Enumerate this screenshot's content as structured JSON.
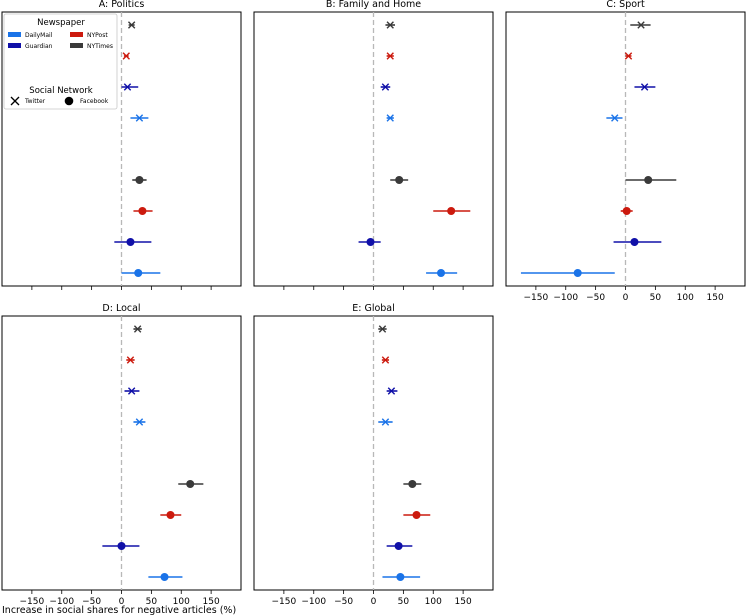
{
  "chart_data": {
    "type": "scatter",
    "figure_xlabel": "Increase in social shares for negative articles (%)",
    "xticks": [
      -150,
      -100,
      -50,
      0,
      50,
      100,
      150
    ],
    "xlim": [
      -200,
      200
    ],
    "colors": {
      "DailyMail": "#1a73e8",
      "Guardian": "#1010a8",
      "NYPost": "#cc1a0e",
      "NYTimes": "#3a3a3a"
    },
    "legend": {
      "newspaper_title": "Newspaper",
      "newspapers": [
        "DailyMail",
        "Guardian",
        "NYPost",
        "NYTimes"
      ],
      "network_title": "Social Network",
      "networks": [
        "Twitter",
        "Facebook"
      ]
    },
    "row_order": [
      "NYTimes-Twitter",
      "NYPost-Twitter",
      "Guardian-Twitter",
      "DailyMail-Twitter",
      "NYTimes-Facebook",
      "NYPost-Facebook",
      "Guardian-Facebook",
      "DailyMail-Facebook"
    ],
    "panels": [
      {
        "title": "A: Politics",
        "points": [
          {
            "newspaper": "NYTimes",
            "network": "Twitter",
            "value": 17,
            "ci": [
              12,
              22
            ]
          },
          {
            "newspaper": "NYPost",
            "network": "Twitter",
            "value": 8,
            "ci": [
              4,
              12
            ]
          },
          {
            "newspaper": "Guardian",
            "network": "Twitter",
            "value": 10,
            "ci": [
              0,
              28
            ]
          },
          {
            "newspaper": "DailyMail",
            "network": "Twitter",
            "value": 30,
            "ci": [
              15,
              45
            ]
          },
          {
            "newspaper": "NYTimes",
            "network": "Facebook",
            "value": 30,
            "ci": [
              18,
              42
            ]
          },
          {
            "newspaper": "NYPost",
            "network": "Facebook",
            "value": 35,
            "ci": [
              20,
              52
            ]
          },
          {
            "newspaper": "Guardian",
            "network": "Facebook",
            "value": 15,
            "ci": [
              -12,
              50
            ]
          },
          {
            "newspaper": "DailyMail",
            "network": "Facebook",
            "value": 28,
            "ci": [
              0,
              65
            ]
          }
        ]
      },
      {
        "title": "B: Family and Home",
        "points": [
          {
            "newspaper": "NYTimes",
            "network": "Twitter",
            "value": 28,
            "ci": [
              20,
              36
            ]
          },
          {
            "newspaper": "NYPost",
            "network": "Twitter",
            "value": 28,
            "ci": [
              22,
              34
            ]
          },
          {
            "newspaper": "Guardian",
            "network": "Twitter",
            "value": 20,
            "ci": [
              12,
              28
            ]
          },
          {
            "newspaper": "DailyMail",
            "network": "Twitter",
            "value": 28,
            "ci": [
              22,
              34
            ]
          },
          {
            "newspaper": "NYTimes",
            "network": "Facebook",
            "value": 43,
            "ci": [
              28,
              58
            ]
          },
          {
            "newspaper": "NYPost",
            "network": "Facebook",
            "value": 130,
            "ci": [
              100,
              162
            ]
          },
          {
            "newspaper": "Guardian",
            "network": "Facebook",
            "value": -5,
            "ci": [
              -25,
              12
            ]
          },
          {
            "newspaper": "DailyMail",
            "network": "Facebook",
            "value": 113,
            "ci": [
              88,
              140
            ]
          }
        ]
      },
      {
        "title": "C: Sport",
        "points": [
          {
            "newspaper": "NYTimes",
            "network": "Twitter",
            "value": 26,
            "ci": [
              8,
              42
            ]
          },
          {
            "newspaper": "NYPost",
            "network": "Twitter",
            "value": 5,
            "ci": [
              0,
              10
            ]
          },
          {
            "newspaper": "Guardian",
            "network": "Twitter",
            "value": 32,
            "ci": [
              15,
              50
            ]
          },
          {
            "newspaper": "DailyMail",
            "network": "Twitter",
            "value": -18,
            "ci": [
              -32,
              -5
            ]
          },
          {
            "newspaper": "NYTimes",
            "network": "Facebook",
            "value": 38,
            "ci": [
              0,
              85
            ]
          },
          {
            "newspaper": "NYPost",
            "network": "Facebook",
            "value": 2,
            "ci": [
              -8,
              12
            ]
          },
          {
            "newspaper": "Guardian",
            "network": "Facebook",
            "value": 15,
            "ci": [
              -20,
              60
            ]
          },
          {
            "newspaper": "DailyMail",
            "network": "Facebook",
            "value": -80,
            "ci": [
              -175,
              -18
            ]
          }
        ]
      },
      {
        "title": "D: Local",
        "points": [
          {
            "newspaper": "NYTimes",
            "network": "Twitter",
            "value": 27,
            "ci": [
              20,
              34
            ]
          },
          {
            "newspaper": "NYPost",
            "network": "Twitter",
            "value": 15,
            "ci": [
              8,
              22
            ]
          },
          {
            "newspaper": "Guardian",
            "network": "Twitter",
            "value": 17,
            "ci": [
              5,
              30
            ]
          },
          {
            "newspaper": "DailyMail",
            "network": "Twitter",
            "value": 30,
            "ci": [
              20,
              40
            ]
          },
          {
            "newspaper": "NYTimes",
            "network": "Facebook",
            "value": 115,
            "ci": [
              95,
              137
            ]
          },
          {
            "newspaper": "NYPost",
            "network": "Facebook",
            "value": 82,
            "ci": [
              65,
              100
            ]
          },
          {
            "newspaper": "Guardian",
            "network": "Facebook",
            "value": 0,
            "ci": [
              -32,
              30
            ]
          },
          {
            "newspaper": "DailyMail",
            "network": "Facebook",
            "value": 72,
            "ci": [
              45,
              102
            ]
          }
        ]
      },
      {
        "title": "E: Global",
        "points": [
          {
            "newspaper": "NYTimes",
            "network": "Twitter",
            "value": 15,
            "ci": [
              8,
              22
            ]
          },
          {
            "newspaper": "NYPost",
            "network": "Twitter",
            "value": 20,
            "ci": [
              14,
              26
            ]
          },
          {
            "newspaper": "Guardian",
            "network": "Twitter",
            "value": 30,
            "ci": [
              22,
              40
            ]
          },
          {
            "newspaper": "DailyMail",
            "network": "Twitter",
            "value": 20,
            "ci": [
              8,
              32
            ]
          },
          {
            "newspaper": "NYTimes",
            "network": "Facebook",
            "value": 65,
            "ci": [
              50,
              80
            ]
          },
          {
            "newspaper": "NYPost",
            "network": "Facebook",
            "value": 72,
            "ci": [
              50,
              95
            ]
          },
          {
            "newspaper": "Guardian",
            "network": "Facebook",
            "value": 42,
            "ci": [
              22,
              65
            ]
          },
          {
            "newspaper": "DailyMail",
            "network": "Facebook",
            "value": 45,
            "ci": [
              15,
              78
            ]
          }
        ]
      }
    ]
  }
}
